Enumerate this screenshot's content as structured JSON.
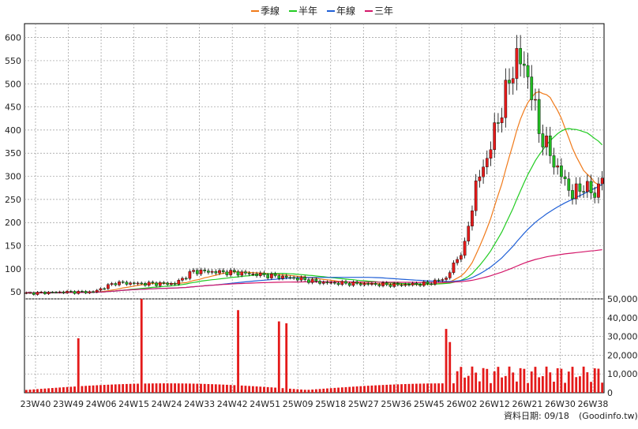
{
  "legend": [
    {
      "label": "季線",
      "color": "#f07a1a"
    },
    {
      "label": "半年",
      "color": "#22cc22"
    },
    {
      "label": "年線",
      "color": "#1f5fd6"
    },
    {
      "label": "三年",
      "color": "#d4186a"
    }
  ],
  "footer": {
    "date_label": "資料日期: 09/18",
    "site": "(Goodinfo.tw)"
  },
  "chart_data": {
    "type": "candlestick",
    "price_axis": {
      "ticks": [
        50,
        100,
        150,
        200,
        250,
        300,
        350,
        400,
        450,
        500,
        550,
        600
      ],
      "range": [
        35,
        630
      ]
    },
    "volume_axis": {
      "ticks": [
        0,
        10000,
        20000,
        30000,
        40000,
        50000
      ],
      "tick_labels": [
        "0",
        "10,000",
        "20,000",
        "30,000",
        "40,000",
        "50,000"
      ],
      "range": [
        0,
        50000
      ]
    },
    "x_ticks": [
      "23W40",
      "23W49",
      "24W06",
      "24W15",
      "24W24",
      "24W33",
      "24W42",
      "24W51",
      "25W09",
      "25W18",
      "25W27",
      "25W36",
      "25W45",
      "26W02",
      "26W12",
      "26W21",
      "26W30",
      "26W38"
    ],
    "colors": {
      "up": "#e41a1a",
      "down": "#22bb22",
      "volume": "#e41a1a"
    },
    "weeks": 156
  }
}
